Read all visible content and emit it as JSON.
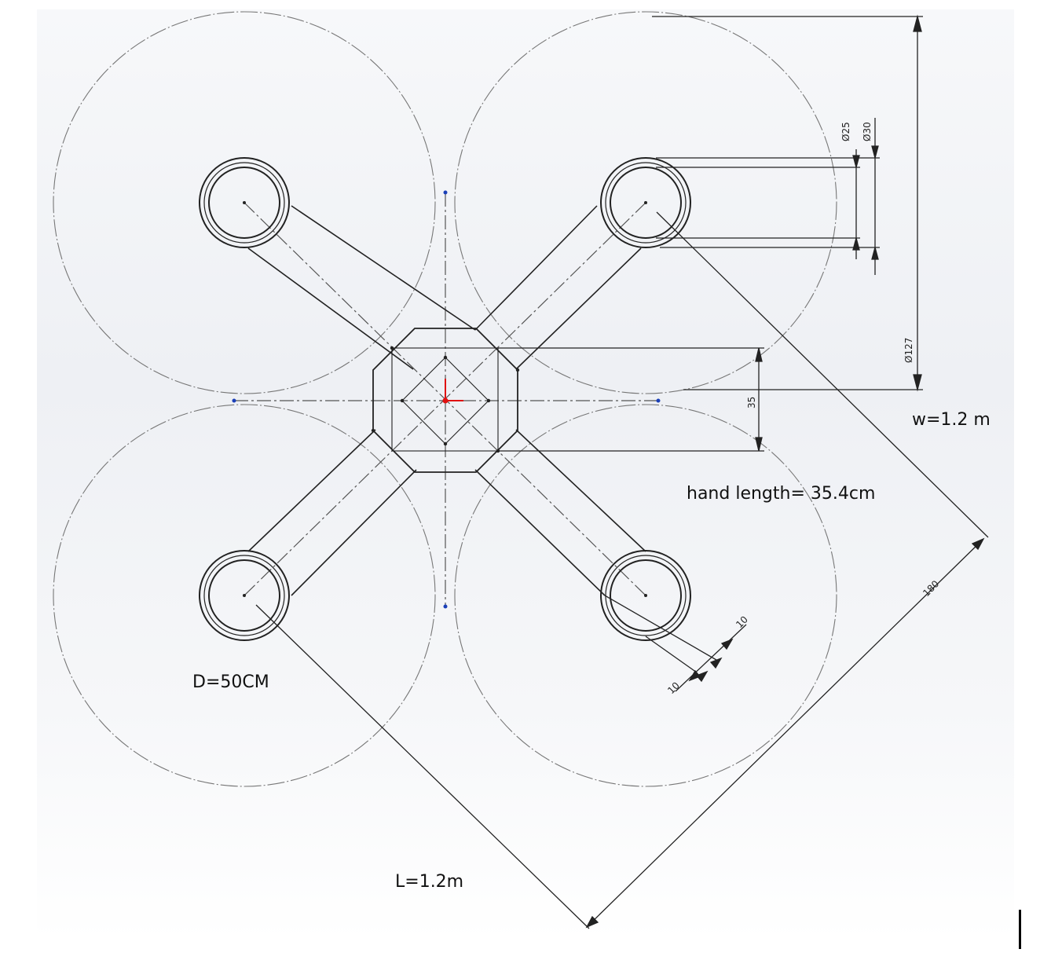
{
  "annotations": {
    "width_label": "w=1.2 m",
    "hand_length_label": "hand length= 35.4cm",
    "propeller_diameter_label": "D=50CM",
    "length_label": "L=1.2m"
  },
  "dimensions": {
    "inner_diameter": "Ø25",
    "outer_diameter": "Ø30",
    "span_127": "Ø127",
    "body_height": "35",
    "diagonal": "180",
    "arm_width_a": "10",
    "arm_width_b": "10"
  },
  "colors": {
    "line": "#222222",
    "construction": "#555555",
    "prop_circle": "#777777",
    "sketch_point": "#1a3fb8",
    "origin": "#e01010"
  }
}
